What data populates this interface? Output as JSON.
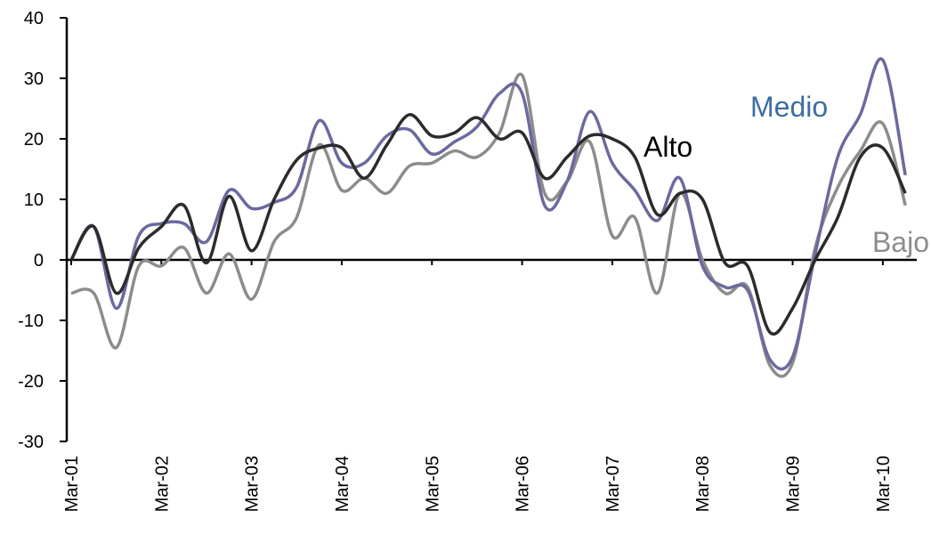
{
  "chart_data": {
    "type": "line",
    "categories": [
      "Mar-01",
      null,
      null,
      null,
      "Mar-02",
      null,
      null,
      null,
      "Mar-03",
      null,
      null,
      null,
      "Mar-04",
      null,
      null,
      null,
      "Mar-05",
      null,
      null,
      null,
      "Mar-06",
      null,
      null,
      null,
      "Mar-07",
      null,
      null,
      null,
      "Mar-08",
      null,
      null,
      null,
      "Mar-09",
      null,
      null,
      null,
      "Mar-10",
      null
    ],
    "series": [
      {
        "name": "Alto",
        "color": "#2b2b2b",
        "label_color": "#000000",
        "values": [
          0,
          5.5,
          -5.5,
          2,
          5.5,
          9,
          -0.5,
          10.5,
          1.5,
          10,
          16.5,
          18.5,
          18.5,
          13.5,
          19,
          24,
          20.5,
          21,
          23.5,
          20,
          21,
          13.5,
          17,
          20.5,
          20,
          17,
          7.5,
          11,
          10,
          -0.5,
          -1,
          -12,
          -8,
          0,
          7,
          17,
          18.5,
          11
        ]
      },
      {
        "name": "Medio",
        "color": "#6a6a9e",
        "label_color": "#3d6da0",
        "values": [
          0,
          5.5,
          -8,
          4,
          6,
          6,
          3,
          11.5,
          8.5,
          9.5,
          12,
          23,
          16,
          16,
          20.5,
          21.5,
          17.5,
          19.5,
          22,
          27.5,
          27.5,
          9,
          13,
          24.5,
          16,
          11.5,
          6.5,
          13.5,
          -1,
          -4.5,
          -5,
          -16.5,
          -16,
          1,
          17,
          24,
          33,
          14
        ]
      },
      {
        "name": "Bajo",
        "color": "#8c8c8c",
        "label_color": "#8c8c8c",
        "values": [
          -5.5,
          -5.5,
          -14.5,
          -1,
          -1,
          2,
          -5.5,
          1,
          -6.5,
          3,
          7,
          19,
          11.5,
          13.5,
          11,
          15.5,
          16,
          18,
          17,
          21,
          30.5,
          11,
          13,
          19.5,
          4,
          7,
          -5.5,
          11,
          0,
          -5.5,
          -4.5,
          -17.5,
          -17,
          2,
          12,
          18,
          22.5,
          9
        ]
      }
    ],
    "ylim": [
      -30,
      40
    ],
    "yticks": [
      -30,
      -20,
      -10,
      0,
      10,
      20,
      30,
      40
    ]
  }
}
